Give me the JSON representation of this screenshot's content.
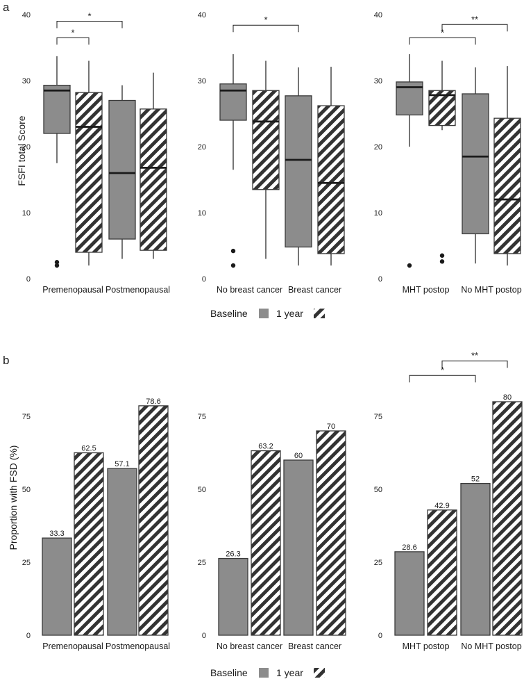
{
  "colors": {
    "fill": "#8c8c8c",
    "edge": "#3a3a3a",
    "hatch_bg": "#ffffff",
    "hatch": "#333333"
  },
  "legend": {
    "title": "Baseline",
    "series": [
      "Baseline",
      "1 year"
    ],
    "label_1year": "1 year"
  },
  "panel_a": {
    "letter": "a",
    "ylabel": "FSFI total Score",
    "ylim": [
      0,
      40
    ],
    "yticks": [
      0,
      10,
      20,
      30,
      40
    ]
  },
  "panel_b": {
    "letter": "b",
    "ylabel": "Proportion with FSD (%)",
    "ylim": [
      0,
      80
    ],
    "yticks": [
      0,
      25,
      50,
      75
    ]
  },
  "chart_data": [
    {
      "id": "a1",
      "type": "boxplot",
      "panel": "a",
      "groups": [
        "Premenopausal",
        "Postmenopausal"
      ],
      "boxes": [
        {
          "group": "Premenopausal",
          "series": "Baseline",
          "lower_whisker": 17.5,
          "q1": 22,
          "median": 28.5,
          "q3": 29.3,
          "upper_whisker": 33.7,
          "outliers": [
            2,
            2.5
          ]
        },
        {
          "group": "Premenopausal",
          "series": "1 year",
          "lower_whisker": 2,
          "q1": 4,
          "median": 23,
          "q3": 28.2,
          "upper_whisker": 33
        },
        {
          "group": "Postmenopausal",
          "series": "Baseline",
          "lower_whisker": 3,
          "q1": 6,
          "median": 16,
          "q3": 27,
          "upper_whisker": 29.3
        },
        {
          "group": "Postmenopausal",
          "series": "1 year",
          "lower_whisker": 3,
          "q1": 4.3,
          "median": 16.8,
          "q3": 25.7,
          "upper_whisker": 31.2
        }
      ],
      "brackets": [
        {
          "from": 0,
          "to": 1,
          "y": 36.5,
          "label": "*"
        },
        {
          "from": 0,
          "to": 2,
          "y": 39,
          "label": "*"
        }
      ]
    },
    {
      "id": "a2",
      "type": "boxplot",
      "panel": "a",
      "groups": [
        "No breast cancer",
        "Breast cancer"
      ],
      "boxes": [
        {
          "group": "No breast cancer",
          "series": "Baseline",
          "lower_whisker": 16.5,
          "q1": 24,
          "median": 28.5,
          "q3": 29.5,
          "upper_whisker": 34,
          "outliers": [
            2,
            4.2
          ]
        },
        {
          "group": "No breast cancer",
          "series": "1 year",
          "lower_whisker": 3,
          "q1": 13.5,
          "median": 23.8,
          "q3": 28.5,
          "upper_whisker": 33
        },
        {
          "group": "Breast cancer",
          "series": "Baseline",
          "lower_whisker": 2,
          "q1": 4.8,
          "median": 18,
          "q3": 27.7,
          "upper_whisker": 32
        },
        {
          "group": "Breast cancer",
          "series": "1 year",
          "lower_whisker": 2,
          "q1": 3.8,
          "median": 14.5,
          "q3": 26.2,
          "upper_whisker": 32.1
        }
      ],
      "brackets": [
        {
          "from": 0,
          "to": 2,
          "y": 38.4,
          "label": "*"
        }
      ]
    },
    {
      "id": "a3",
      "type": "boxplot",
      "panel": "a",
      "groups": [
        "MHT postop",
        "No MHT postop"
      ],
      "boxes": [
        {
          "group": "MHT postop",
          "series": "Baseline",
          "lower_whisker": 20,
          "q1": 24.8,
          "median": 29,
          "q3": 29.8,
          "upper_whisker": 34,
          "outliers": [
            2
          ]
        },
        {
          "group": "MHT postop",
          "series": "1 year",
          "lower_whisker": 22.5,
          "q1": 23.2,
          "median": 27.8,
          "q3": 28.5,
          "upper_whisker": 33,
          "outliers": [
            2.6,
            3.5
          ]
        },
        {
          "group": "No MHT postop",
          "series": "Baseline",
          "lower_whisker": 2.3,
          "q1": 6.8,
          "median": 18.5,
          "q3": 28,
          "upper_whisker": 32
        },
        {
          "group": "No MHT postop",
          "series": "1 year",
          "lower_whisker": 2,
          "q1": 3.8,
          "median": 12,
          "q3": 24.3,
          "upper_whisker": 32.2
        }
      ],
      "brackets": [
        {
          "from": 0,
          "to": 2,
          "y": 36.5,
          "label": "*"
        },
        {
          "from": 1,
          "to": 3,
          "y": 38.5,
          "label": "**"
        }
      ]
    },
    {
      "id": "b1",
      "type": "bar",
      "panel": "b",
      "groups": [
        "Premenopausal",
        "Postmenopausal"
      ],
      "bars": [
        {
          "group": "Premenopausal",
          "series": "Baseline",
          "value": 33.3,
          "label": "33.3"
        },
        {
          "group": "Premenopausal",
          "series": "1 year",
          "value": 62.5,
          "label": "62.5"
        },
        {
          "group": "Postmenopausal",
          "series": "Baseline",
          "value": 57.1,
          "label": "57.1"
        },
        {
          "group": "Postmenopausal",
          "series": "1 year",
          "value": 78.6,
          "label": "78.6"
        }
      ],
      "brackets": []
    },
    {
      "id": "b2",
      "type": "bar",
      "panel": "b",
      "groups": [
        "No breast cancer",
        "Breast cancer"
      ],
      "bars": [
        {
          "group": "No breast cancer",
          "series": "Baseline",
          "value": 26.3,
          "label": "26.3"
        },
        {
          "group": "No breast cancer",
          "series": "1 year",
          "value": 63.2,
          "label": "63.2"
        },
        {
          "group": "Breast cancer",
          "series": "Baseline",
          "value": 60,
          "label": "60"
        },
        {
          "group": "Breast cancer",
          "series": "1 year",
          "value": 70,
          "label": "70"
        }
      ],
      "brackets": []
    },
    {
      "id": "b3",
      "type": "bar",
      "panel": "b",
      "groups": [
        "MHT postop",
        "No MHT postop"
      ],
      "bars": [
        {
          "group": "MHT postop",
          "series": "Baseline",
          "value": 28.6,
          "label": "28.6"
        },
        {
          "group": "MHT postop",
          "series": "1 year",
          "value": 42.9,
          "label": "42.9"
        },
        {
          "group": "No MHT postop",
          "series": "Baseline",
          "value": 52,
          "label": "52"
        },
        {
          "group": "No MHT postop",
          "series": "1 year",
          "value": 80,
          "label": "80"
        }
      ],
      "brackets": [
        {
          "from": 0,
          "to": 2,
          "y": 89,
          "label": "*"
        },
        {
          "from": 1,
          "to": 3,
          "y": 94,
          "label": "**"
        }
      ]
    }
  ]
}
